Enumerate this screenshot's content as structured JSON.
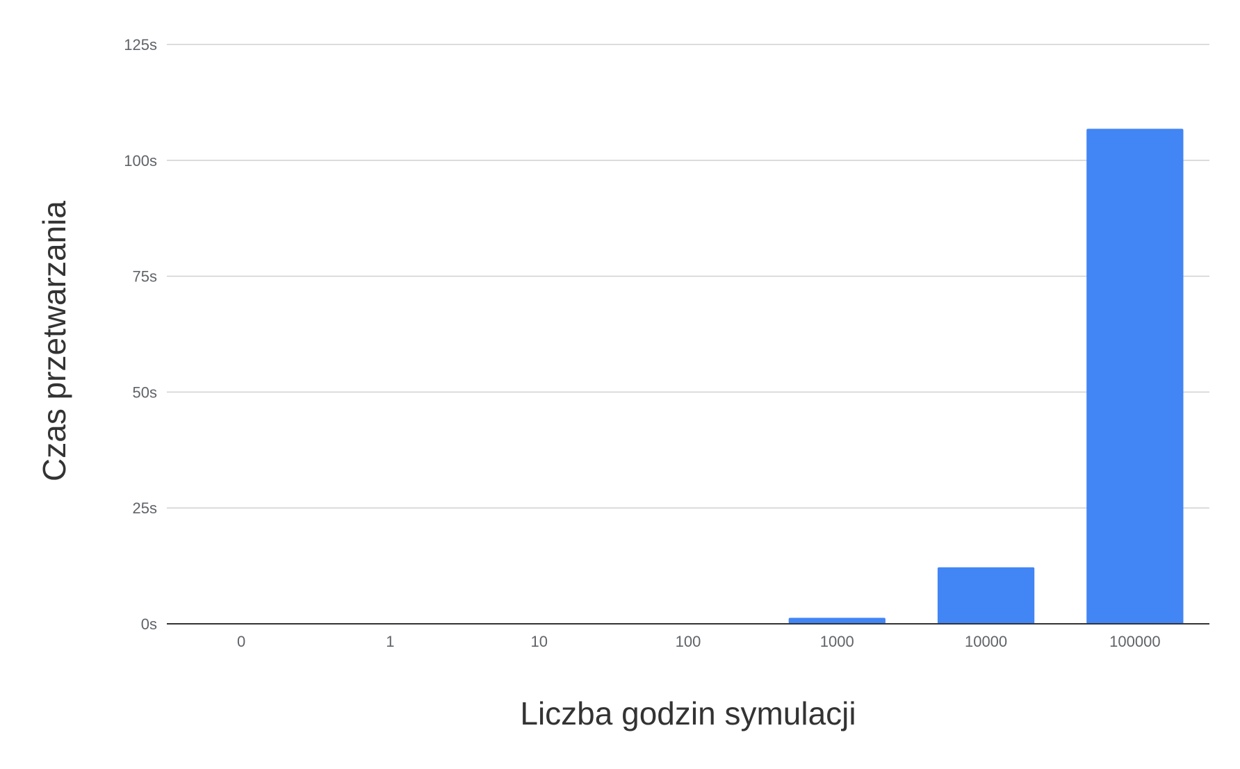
{
  "chart_data": {
    "type": "bar",
    "categories": [
      "0",
      "1",
      "10",
      "100",
      "1000",
      "10000",
      "100000"
    ],
    "values": [
      0,
      0,
      0,
      0,
      1.3,
      12.2,
      106.8
    ],
    "xlabel": "Liczba godzin symulacji",
    "ylabel": "Czas przetwarzania",
    "ylim": [
      0,
      125
    ],
    "yticks": [
      0,
      25,
      50,
      75,
      100,
      125
    ],
    "ytick_labels": [
      "0s",
      "25s",
      "50s",
      "75s",
      "100s",
      "125s"
    ],
    "grid": true,
    "legend": "none",
    "bar_color": "#4285f4"
  }
}
